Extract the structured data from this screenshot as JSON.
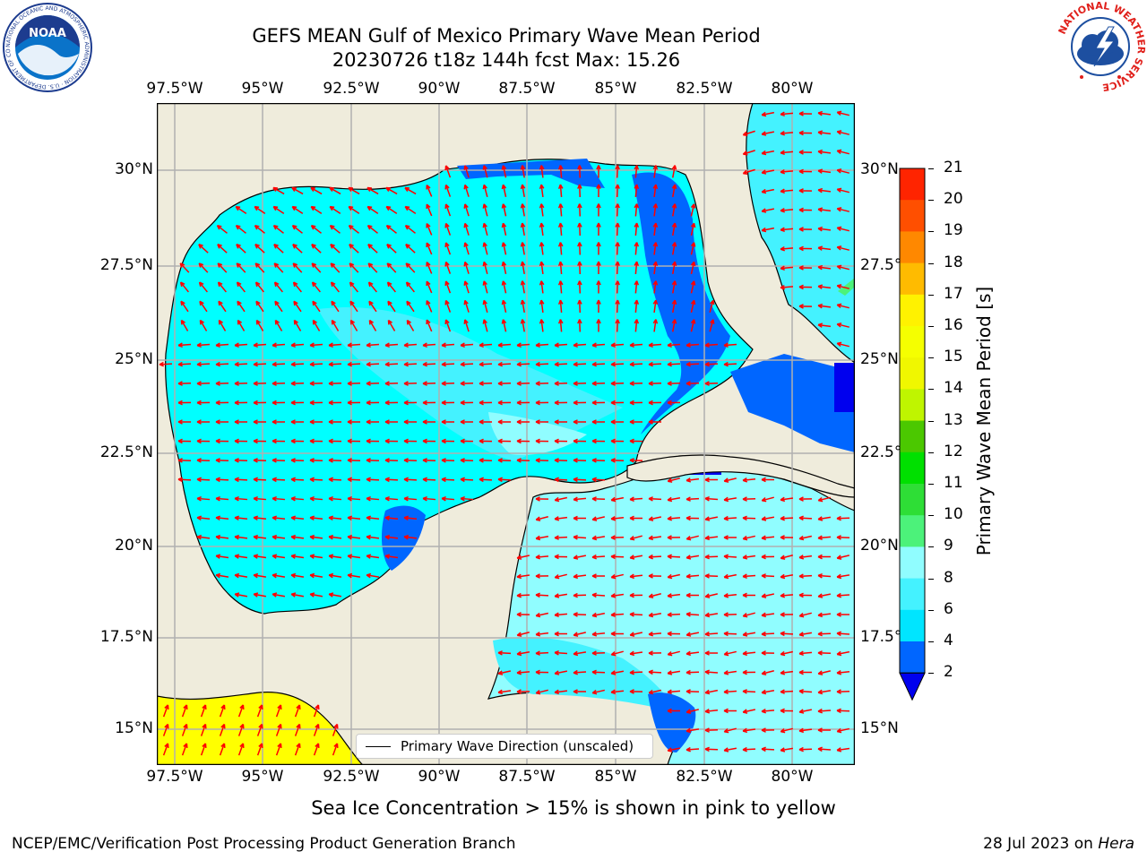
{
  "title": {
    "line1": "GEFS MEAN Gulf of Mexico Primary Wave Mean Period",
    "line2": "20230726 t18z 144h fcst   Max: 15.26"
  },
  "map": {
    "lon_ticks": [
      "97.5°W",
      "95°W",
      "92.5°W",
      "90°W",
      "87.5°W",
      "85°W",
      "82.5°W",
      "80°W"
    ],
    "lat_ticks": [
      "30°N",
      "27.5°N",
      "25°N",
      "22.5°N",
      "20°N",
      "17.5°N",
      "15°N"
    ],
    "lon_range": [
      -98,
      -78.2
    ],
    "lat_range": [
      14,
      31.8
    ],
    "legend": "Primary Wave Direction (unscaled)",
    "colors": {
      "land": "#efecdc",
      "coast": "#000000",
      "grid": "#b0b0b0",
      "arrow": "#ff0000",
      "ice_yellow": "#ffff00"
    }
  },
  "colorbar": {
    "label": "Primary Wave Mean Period [s]",
    "ticks": [
      "2",
      "4",
      "6",
      "8",
      "9",
      "10",
      "11",
      "12",
      "13",
      "14",
      "15",
      "16",
      "17",
      "18",
      "19",
      "20",
      "21"
    ],
    "colors": [
      "#0066ff",
      "#00e5ff",
      "#44f2ff",
      "#90fdff",
      "#4cf27a",
      "#2ede36",
      "#00e000",
      "#4bc800",
      "#bff500",
      "#f0f700",
      "#f5ff00",
      "#fff200",
      "#ffbb00",
      "#ff8800",
      "#ff4f00",
      "#ff2400"
    ],
    "under_color": "#0000ee"
  },
  "caption": "Sea Ice Concentration > 15% is shown in pink to yellow",
  "footer": {
    "org": "NCEP/EMC/Verification Post Processing Product Generation Branch",
    "date": "28 Jul 2023 on ",
    "host": "Hera"
  },
  "logos": {
    "noaa": "NOAA",
    "noaa_ring": "NATIONAL OCEANIC AND ATMOSPHERIC ADMINISTRATION · U.S. DEPARTMENT OF COMMERCE",
    "nws_ring": "NATIONAL WEATHER SERVICE"
  }
}
